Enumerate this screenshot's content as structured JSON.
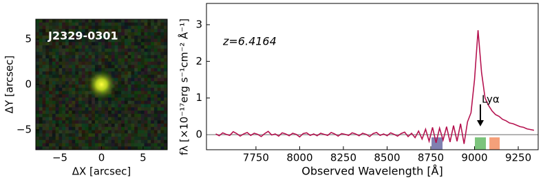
{
  "chart_data": [
    {
      "type": "image",
      "title": "J2329-0301",
      "xlabel": "ΔX [arcsec]",
      "ylabel": "ΔY [arcsec]",
      "xlim": [
        -7.9,
        7.9
      ],
      "ylim": [
        -7.2,
        7.2
      ],
      "xticks": [
        {
          "value": -5,
          "label": "−5"
        },
        0,
        5
      ],
      "yticks": [
        {
          "value": -5,
          "label": "−5"
        },
        0,
        5
      ]
    },
    {
      "type": "line",
      "annotations": [
        "z=6.4164",
        "Lyα"
      ],
      "xlabel": "Observed Wavelength [Å]",
      "ylabel": "fλ [×10⁻¹⁷erg s⁻¹cm⁻² Å⁻¹]",
      "xlim": [
        7467,
        9364
      ],
      "ylim": [
        -0.41,
        3.58
      ],
      "xticks": [
        7750,
        8000,
        8250,
        8500,
        8750,
        9000,
        9250
      ],
      "yticks": [
        0,
        1,
        2,
        3
      ],
      "reference_line": {
        "value": 0,
        "color": "#999999"
      },
      "bands": [
        {
          "x": [
            8754,
            8817
          ],
          "color": "#8080b0"
        },
        {
          "x": [
            9002,
            9065
          ],
          "color": "#7cc47c"
        },
        {
          "x": [
            9085,
            9144
          ],
          "color": "#f5a07a"
        }
      ],
      "x": [
        7520,
        7540,
        7560,
        7580,
        7600,
        7620,
        7640,
        7660,
        7680,
        7700,
        7720,
        7740,
        7760,
        7780,
        7800,
        7820,
        7840,
        7860,
        7880,
        7900,
        7920,
        7940,
        7960,
        7980,
        8000,
        8020,
        8040,
        8060,
        8080,
        8100,
        8120,
        8140,
        8160,
        8180,
        8200,
        8220,
        8240,
        8260,
        8280,
        8300,
        8320,
        8340,
        8360,
        8380,
        8400,
        8420,
        8440,
        8460,
        8480,
        8500,
        8520,
        8540,
        8560,
        8580,
        8600,
        8620,
        8640,
        8660,
        8680,
        8700,
        8720,
        8740,
        8760,
        8780,
        8800,
        8820,
        8840,
        8860,
        8880,
        8900,
        8920,
        8940,
        8960,
        8980,
        9000,
        9020,
        9040,
        9060,
        9080,
        9100,
        9120,
        9140,
        9160,
        9180,
        9200,
        9220,
        9240,
        9260,
        9280,
        9300,
        9320,
        9340
      ],
      "series": [
        {
          "color": "#b5124f",
          "values": [
            0.02,
            -0.03,
            0.05,
            0.01,
            -0.02,
            0.08,
            0.03,
            -0.04,
            0.02,
            0.06,
            -0.02,
            0.04,
            0.01,
            -0.05,
            0.03,
            0.09,
            -0.01,
            0.02,
            -0.04,
            0.05,
            0.02,
            -0.03,
            0.04,
            0.01,
            -0.06,
            0.03,
            0.05,
            -0.02,
            0.02,
            -0.03,
            0.04,
            0.01,
            -0.02,
            0.06,
            0.02,
            -0.04,
            0.03,
            0.01,
            -0.02,
            0.05,
            0.02,
            -0.03,
            0.04,
            0.01,
            -0.05,
            0.03,
            0.06,
            -0.02,
            0.02,
            -0.03,
            0.05,
            0.01,
            -0.04,
            0.03,
            0.07,
            -0.05,
            0.04,
            -0.08,
            0.1,
            -0.12,
            0.15,
            -0.18,
            0.2,
            -0.22,
            0.18,
            -0.15,
            0.22,
            -0.2,
            0.25,
            -0.18,
            0.3,
            -0.25,
            0.35,
            0.6,
            1.5,
            2.85,
            1.7,
            1.0,
            0.8,
            0.65,
            0.55,
            0.5,
            0.42,
            0.38,
            0.32,
            0.3,
            0.26,
            0.22,
            0.2,
            0.16,
            0.14,
            0.12
          ]
        }
      ]
    }
  ]
}
